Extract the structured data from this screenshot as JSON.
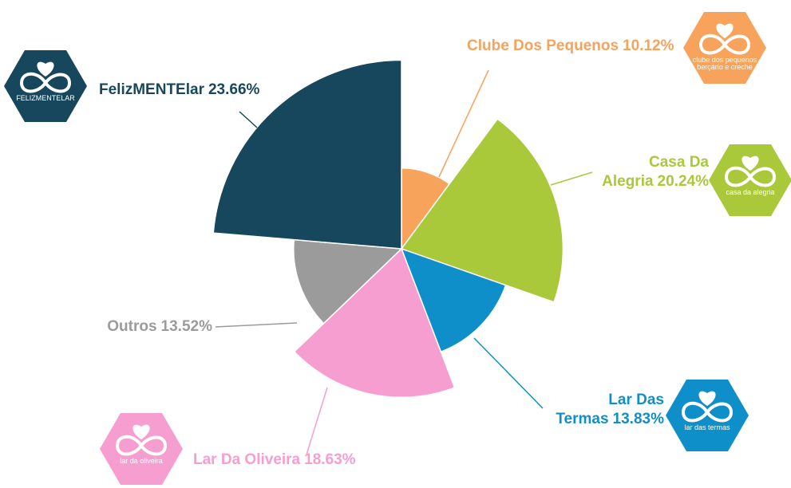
{
  "chart_data": {
    "type": "polar-area",
    "slices": [
      {
        "name": "Clube Dos Pequenos",
        "value": 10.12,
        "value_label": "10.12%",
        "color": "#f7a35c",
        "logo": [
          "clube dos pequenos",
          "berçário e creche"
        ]
      },
      {
        "name": "Casa Da Alegria",
        "value": 20.24,
        "value_label": "20.24%",
        "color": "#a9c83a",
        "logo": [
          "casa da alegria"
        ]
      },
      {
        "name": "Lar Das Termas",
        "value": 13.83,
        "value_label": "13.83%",
        "color": "#0f8fc9",
        "logo": [
          "lar das termas"
        ]
      },
      {
        "name": "Lar Da Oliveira",
        "value": 18.63,
        "value_label": "18.63%",
        "color": "#f79ed0",
        "logo": [
          "lar da oliveira"
        ]
      },
      {
        "name": "Outros",
        "value": 13.52,
        "value_label": "13.52%",
        "color": "#9b9b9b"
      },
      {
        "name": "FelizMENTElar",
        "value": 23.66,
        "value_label": "23.66%",
        "color": "#17475c",
        "logo": [
          "FELIZMENTELAR"
        ]
      }
    ]
  }
}
